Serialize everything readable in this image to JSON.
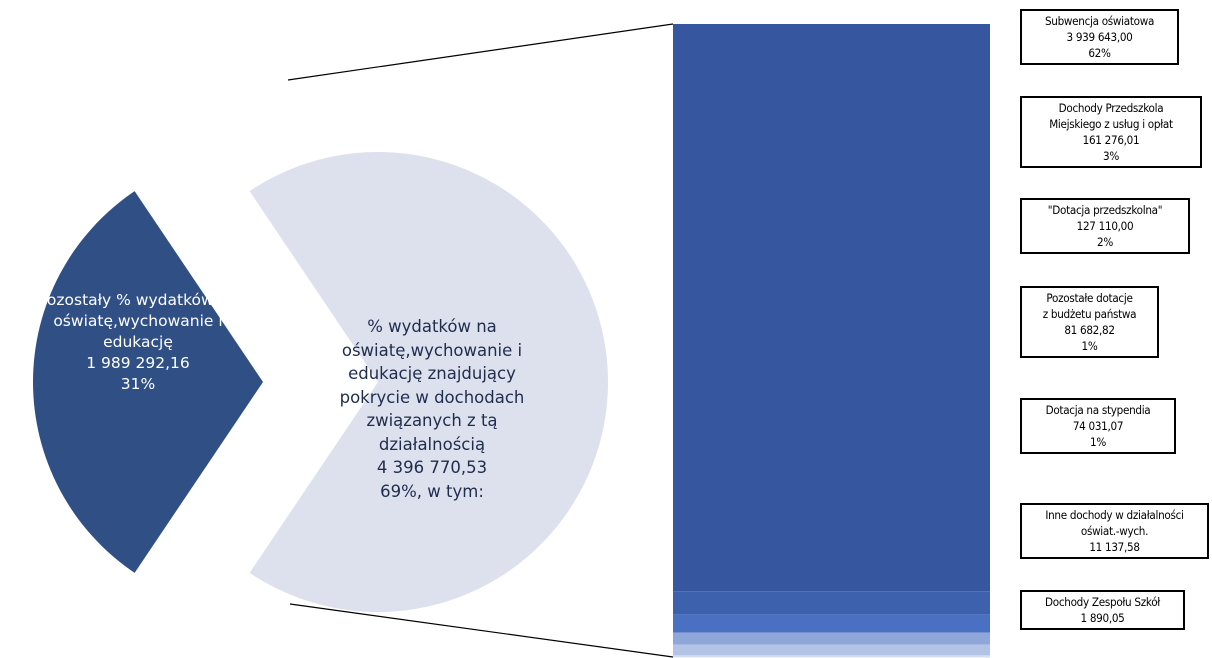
{
  "chart_data": {
    "type": "pie",
    "variant": "bar-of-pie",
    "pie_slices": [
      {
        "key": "other",
        "lines": [
          "Pozostały % wydatków na",
          "oświatę,wychowanie i",
          "edukację",
          "1 989 292,16",
          "31%"
        ],
        "value": 1989292.16,
        "percent": 31,
        "color": "#2f4f85"
      },
      {
        "key": "covered",
        "lines": [
          "% wydatków na",
          "oświatę,wychowanie i",
          "edukację znajdujący",
          "pokrycie w dochodach",
          "związanych z tą",
          "działalnością",
          "4 396 770,53",
          "69%, w tym:"
        ],
        "value": 4396770.53,
        "percent": 69,
        "color": "#dde1ee"
      }
    ],
    "bar_segments": [
      {
        "lines": [
          "Subwencja oświatowa",
          "3 939 643,00",
          "62%"
        ],
        "value": 3939643.0,
        "percent": 62,
        "color": "#3657a0"
      },
      {
        "lines": [
          "Dochody Przedszkola",
          "Miejskiego z usług i opłat",
          "161 276,01",
          "3%"
        ],
        "value": 161276.01,
        "percent": 3,
        "color": "#3d61ad"
      },
      {
        "lines": [
          "\"Dotacja przedszkolna\"",
          "127 110,00",
          "2%"
        ],
        "value": 127110.0,
        "percent": 2,
        "color": "#4a70c4"
      },
      {
        "lines": [
          "Pozostałe dotacje",
          "z budżetu państwa",
          "81 682,82",
          "1%"
        ],
        "value": 81682.82,
        "percent": 1,
        "color": "#8ea6d8"
      },
      {
        "lines": [
          "Dotacja na stypendia",
          "74 031,07",
          "1%"
        ],
        "value": 74031.07,
        "percent": 1,
        "color": "#b3c3e6"
      },
      {
        "lines": [
          "Inne dochody w działalności",
          "oświat.-wych.",
          "11 137,58"
        ],
        "value": 11137.58,
        "color": "#c9d5ee"
      },
      {
        "lines": [
          "Dochody Zespołu Szkół",
          "1 890,05"
        ],
        "value": 1890.05,
        "color": "#dae3f4"
      }
    ]
  }
}
